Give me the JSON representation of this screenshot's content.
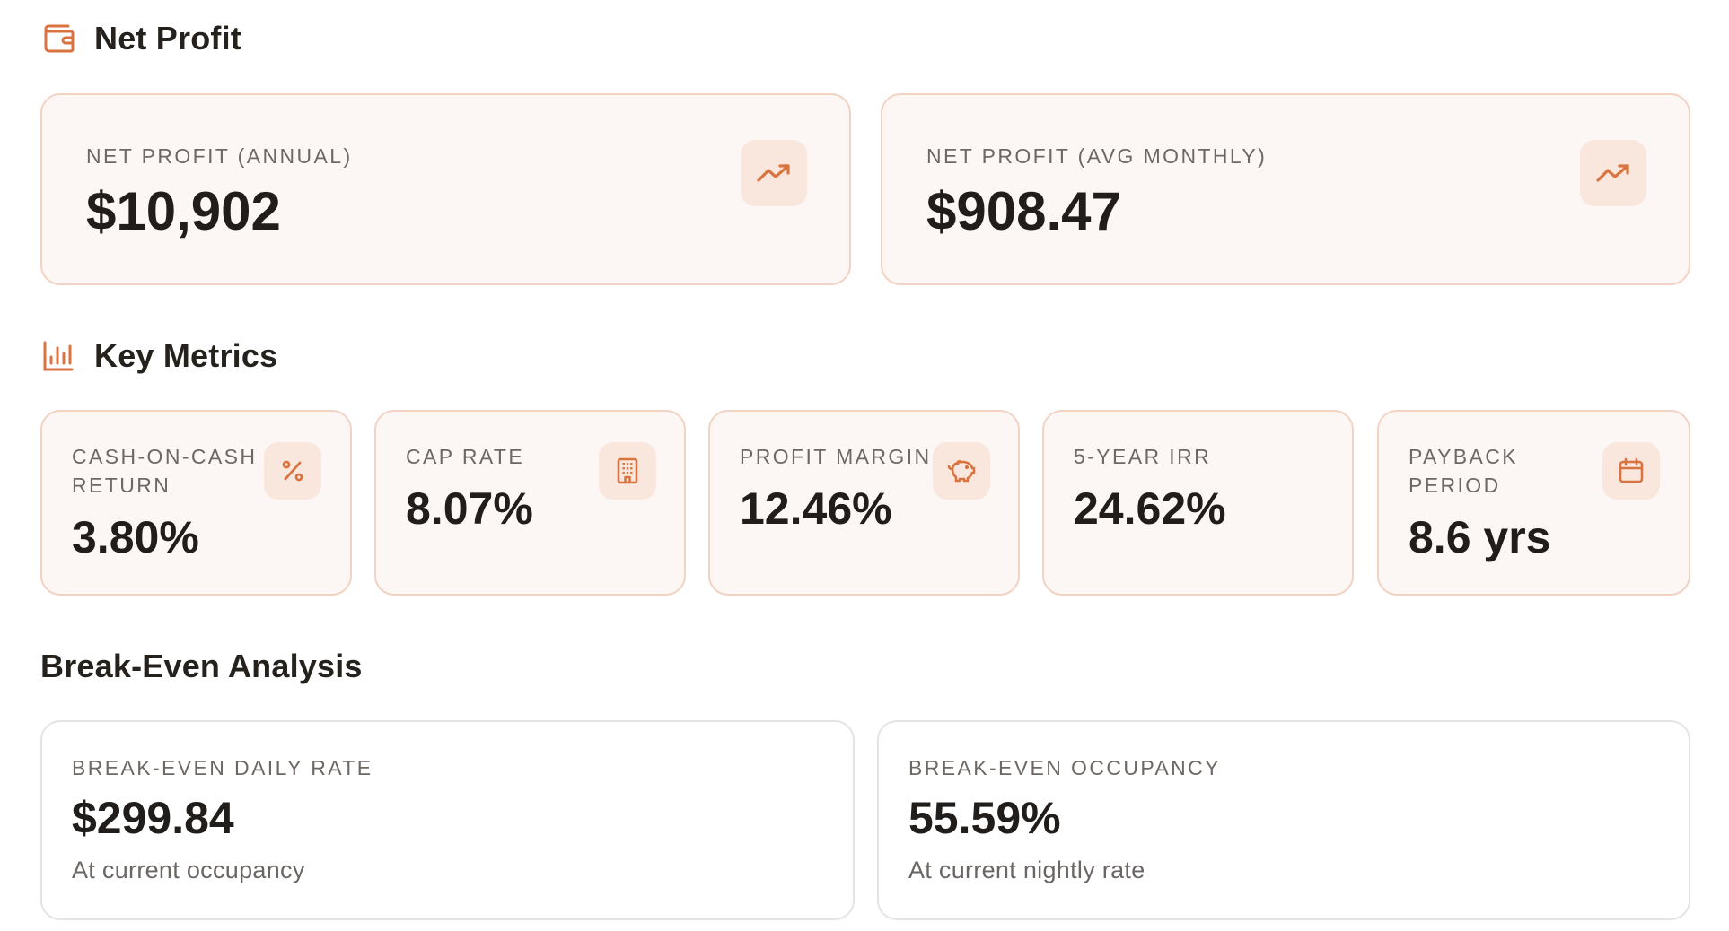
{
  "net_profit": {
    "title": "Net Profit",
    "cards": [
      {
        "label": "NET PROFIT (ANNUAL)",
        "value": "$10,902",
        "icon": "trending-up-icon"
      },
      {
        "label": "NET PROFIT (AVG MONTHLY)",
        "value": "$908.47",
        "icon": "trending-up-icon"
      }
    ]
  },
  "key_metrics": {
    "title": "Key Metrics",
    "cards": [
      {
        "label_line1": "CASH-ON-CASH",
        "label_line2": "RETURN",
        "value": "3.80%",
        "icon": "percent-icon"
      },
      {
        "label_line1": "CAP RATE",
        "label_line2": "",
        "value": "8.07%",
        "icon": "building-icon"
      },
      {
        "label_line1": "PROFIT MARGIN",
        "label_line2": "",
        "value": "12.46%",
        "icon": "piggy-bank-icon"
      },
      {
        "label_line1": "5-YEAR IRR",
        "label_line2": "",
        "value": "24.62%",
        "icon": ""
      },
      {
        "label_line1": "PAYBACK",
        "label_line2": "PERIOD",
        "value": "8.6 yrs",
        "icon": "calendar-icon"
      }
    ]
  },
  "break_even": {
    "title": "Break-Even Analysis",
    "cards": [
      {
        "label": "BREAK-EVEN DAILY RATE",
        "value": "$299.84",
        "note": "At current occupancy"
      },
      {
        "label": "BREAK-EVEN OCCUPANCY",
        "value": "55.59%",
        "note": "At current nightly rate"
      }
    ]
  },
  "colors": {
    "accent": "#d9733f",
    "card_bg": "#fcf7f5",
    "card_border": "#f2d2c3",
    "icon_bg": "#f9e7de"
  }
}
